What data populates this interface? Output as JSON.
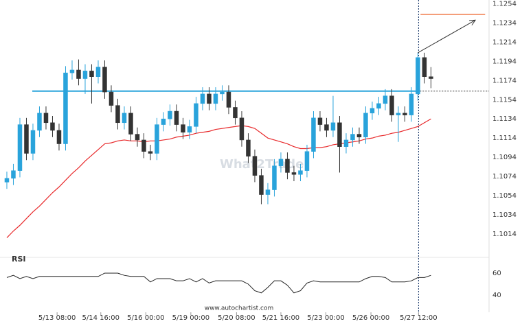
{
  "chart_data": {
    "type": "candlestick",
    "watermark": "What2Trade",
    "source": "www.autochartist.com",
    "xlim": [
      -1.05,
      73.9
    ],
    "xticks": [
      {
        "value": 7.7,
        "label": "5/13 08:00"
      },
      {
        "value": 14.4,
        "label": "5/14 16:00"
      },
      {
        "value": 21.3,
        "label": "5/16 00:00"
      },
      {
        "value": 28.2,
        "label": "5/19 00:00"
      },
      {
        "value": 35.2,
        "label": "5/20 08:00"
      },
      {
        "value": 42,
        "label": "5/21 16:00"
      },
      {
        "value": 48.9,
        "label": "5/23 00:00"
      },
      {
        "value": 55.8,
        "label": "5/26 00:00"
      },
      {
        "value": 63.1,
        "label": "5/27 12:00"
      }
    ],
    "ylim": [
      1.1006,
      1.1258
    ],
    "yticks": [
      1.1254,
      1.1234,
      1.1214,
      1.1194,
      1.1174,
      1.1154,
      1.1134,
      1.1114,
      1.1094,
      1.1074,
      1.1054,
      1.1034,
      1.1014
    ],
    "grid": false,
    "up_color": "#29a3db",
    "down_color": "#333333",
    "open": [
      1.1068,
      1.1072,
      1.108,
      1.1128,
      1.1098,
      1.1122,
      1.114,
      1.113,
      1.1122,
      1.1108,
      1.1182,
      1.1185,
      1.1176,
      1.1184,
      1.1178,
      1.1188,
      1.1162,
      1.1148,
      1.113,
      1.114,
      1.1118,
      1.1112,
      1.11,
      1.1098,
      1.1128,
      1.1134,
      1.1142,
      1.1128,
      1.112,
      1.1126,
      1.115,
      1.116,
      1.115,
      1.116,
      1.1162,
      1.1146,
      1.1135,
      1.1112,
      1.1095,
      1.1075,
      1.1055,
      1.106,
      1.1085,
      1.1092,
      1.1078,
      1.1076,
      1.108,
      1.11,
      1.1135,
      1.1128,
      1.1122,
      1.113,
      1.1105,
      1.1112,
      1.1118,
      1.1115,
      1.114,
      1.1145,
      1.115,
      1.1158,
      1.1138,
      1.114,
      1.1138,
      1.116,
      1.1198,
      1.1178
    ],
    "high": [
      1.1079,
      1.1087,
      1.1135,
      1.1135,
      1.1129,
      1.1147,
      1.1147,
      1.1137,
      1.1129,
      1.1189,
      1.1195,
      1.1196,
      1.1191,
      1.1191,
      1.1195,
      1.1195,
      1.1169,
      1.1155,
      1.1147,
      1.1147,
      1.1125,
      1.1119,
      1.1107,
      1.1135,
      1.1141,
      1.1149,
      1.1149,
      1.1135,
      1.1133,
      1.1157,
      1.1167,
      1.1167,
      1.1167,
      1.1169,
      1.1169,
      1.1153,
      1.1142,
      1.1119,
      1.1102,
      1.1082,
      1.1067,
      1.1092,
      1.1099,
      1.1099,
      1.1085,
      1.1087,
      1.1107,
      1.1142,
      1.1142,
      1.1135,
      1.1158,
      1.1137,
      1.1119,
      1.1125,
      1.1125,
      1.1147,
      1.1152,
      1.1157,
      1.1165,
      1.1165,
      1.1147,
      1.1147,
      1.1167,
      1.1203,
      1.1203,
      1.1188
    ],
    "low": [
      1.1061,
      1.1065,
      1.1073,
      1.1091,
      1.1091,
      1.1115,
      1.1123,
      1.1115,
      1.1101,
      1.1101,
      1.1175,
      1.1169,
      1.116,
      1.115,
      1.1171,
      1.1155,
      1.1141,
      1.1123,
      1.1123,
      1.1111,
      1.1105,
      1.1093,
      1.1091,
      1.1091,
      1.1121,
      1.1127,
      1.1121,
      1.1113,
      1.1113,
      1.1119,
      1.1143,
      1.1143,
      1.1143,
      1.1153,
      1.1139,
      1.1128,
      1.1105,
      1.1088,
      1.1068,
      1.1045,
      1.1045,
      1.1053,
      1.1078,
      1.1071,
      1.1069,
      1.1069,
      1.1073,
      1.1093,
      1.1121,
      1.1115,
      1.1115,
      1.1078,
      1.1098,
      1.1105,
      1.1108,
      1.1108,
      1.1133,
      1.1138,
      1.1143,
      1.1131,
      1.111,
      1.1131,
      1.1131,
      1.1153,
      1.1171,
      1.1166
    ],
    "close": [
      1.1072,
      1.108,
      1.1128,
      1.1098,
      1.1122,
      1.114,
      1.113,
      1.1122,
      1.1108,
      1.1182,
      1.1185,
      1.1176,
      1.1184,
      1.1178,
      1.1188,
      1.1162,
      1.1148,
      1.113,
      1.114,
      1.1118,
      1.1112,
      1.11,
      1.1098,
      1.1128,
      1.1134,
      1.1142,
      1.1128,
      1.112,
      1.1126,
      1.115,
      1.116,
      1.115,
      1.116,
      1.1162,
      1.1146,
      1.1135,
      1.1112,
      1.1095,
      1.1075,
      1.1055,
      1.106,
      1.1085,
      1.1092,
      1.1078,
      1.1076,
      1.108,
      1.11,
      1.1135,
      1.1128,
      1.1122,
      1.113,
      1.1105,
      1.1112,
      1.1118,
      1.1115,
      1.114,
      1.1145,
      1.115,
      1.1158,
      1.1138,
      1.114,
      1.1138,
      1.116,
      1.1198,
      1.1178,
      1.1176
    ],
    "ma": {
      "color": "#e8292b",
      "values": [
        1.101,
        1.1017,
        1.1023,
        1.103,
        1.1037,
        1.1043,
        1.105,
        1.1057,
        1.1063,
        1.107,
        1.1077,
        1.1083,
        1.109,
        1.1096,
        1.1102,
        1.1108,
        1.1109,
        1.1111,
        1.1112,
        1.1111,
        1.1111,
        1.111,
        1.1111,
        1.1111,
        1.1112,
        1.1113,
        1.1115,
        1.1116,
        1.1117,
        1.1119,
        1.112,
        1.1121,
        1.1123,
        1.1124,
        1.1125,
        1.1126,
        1.1127,
        1.1126,
        1.1124,
        1.1119,
        1.1114,
        1.1112,
        1.111,
        1.1108,
        1.1105,
        1.1103,
        1.1103,
        1.1104,
        1.1104,
        1.1105,
        1.1107,
        1.1108,
        1.1109,
        1.111,
        1.1111,
        1.1113,
        1.1114,
        1.1116,
        1.1117,
        1.1119,
        1.112,
        1.1122,
        1.1124,
        1.1126,
        1.113,
        1.1134
      ]
    },
    "level": {
      "value": 1.1163,
      "from": 3.9,
      "to": 63.3,
      "color": "#29a3db"
    },
    "target": {
      "value": 1.1243,
      "from": 63.4,
      "to": 73.3,
      "color": "#f07f4f"
    },
    "forecast": {
      "from": [
        63,
        1.1203
      ],
      "to": [
        71.8,
        1.1237
      ]
    },
    "rsi": {
      "title": "RSI",
      "ylim": [
        30.6,
        71.25
      ],
      "yticks": [
        60,
        40
      ],
      "values": [
        56,
        58,
        55,
        57,
        55,
        57,
        57,
        57,
        57,
        57,
        57,
        57,
        57,
        57,
        57,
        60,
        60,
        60,
        58,
        57,
        57,
        57,
        52,
        55,
        55,
        55,
        53,
        53,
        55,
        52,
        55,
        51,
        53,
        53,
        53,
        53,
        53,
        50,
        44,
        42,
        47,
        53,
        53,
        49,
        42,
        44,
        51,
        53,
        52,
        52,
        52,
        52,
        52,
        52,
        52,
        55,
        57,
        57,
        56,
        52,
        52,
        52,
        53,
        56,
        56,
        58
      ]
    }
  }
}
